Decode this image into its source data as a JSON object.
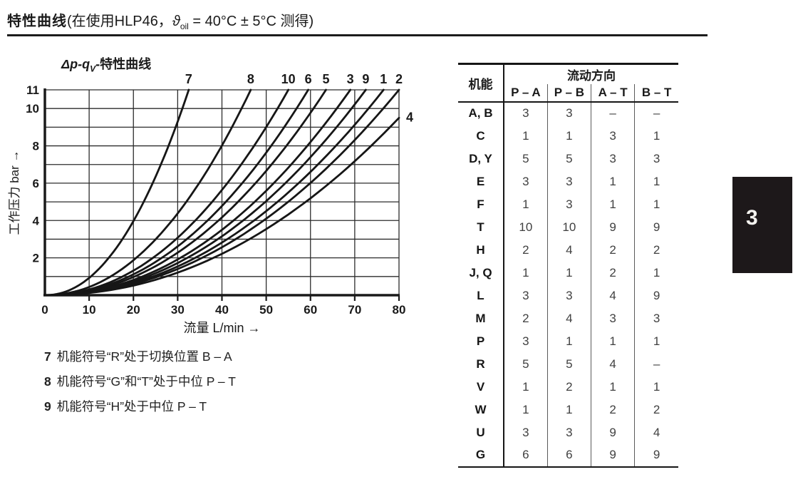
{
  "header": {
    "title_bold": "特性曲线",
    "title_pre": "(在使用HLP46，",
    "theta": "ϑ",
    "theta_sub": "oil",
    "title_post": " = 40°C ± 5°C 测得)"
  },
  "chapter_tab": {
    "number": "3"
  },
  "chart": {
    "title_italic": "Δp-q",
    "title_sub": "V",
    "title_rest": "-特性曲线",
    "x_label": "流量 L/min →",
    "y_label": "工作压力 bar →",
    "x_ticks": [
      0,
      10,
      20,
      30,
      40,
      50,
      60,
      70,
      80
    ],
    "y_tick_labels": [
      2,
      4,
      6,
      8,
      10,
      11
    ],
    "x_min": 0,
    "x_max": 80,
    "y_min": 0,
    "y_max": 11
  },
  "chart_data": {
    "type": "line",
    "title": "Δp-qV-特性曲线",
    "xlabel": "流量 L/min",
    "ylabel": "工作压力 bar",
    "xlim": [
      0,
      80
    ],
    "ylim": [
      0,
      11
    ],
    "grid": true,
    "model": "dp = dp_end * (q / q_end) ^ 2.1 (pressure-drop curves rising from origin)",
    "exponent": 2.1,
    "series": [
      {
        "name": "7",
        "q_end": 32.5,
        "dp_end": 11,
        "label_pos": "top"
      },
      {
        "name": "8",
        "q_end": 46.5,
        "dp_end": 11,
        "label_pos": "top"
      },
      {
        "name": "10",
        "q_end": 55,
        "dp_end": 11,
        "label_pos": "top"
      },
      {
        "name": "6",
        "q_end": 59.5,
        "dp_end": 11,
        "label_pos": "top"
      },
      {
        "name": "5",
        "q_end": 63.5,
        "dp_end": 11,
        "label_pos": "top"
      },
      {
        "name": "3",
        "q_end": 69,
        "dp_end": 11,
        "label_pos": "top"
      },
      {
        "name": "9",
        "q_end": 72.5,
        "dp_end": 11,
        "label_pos": "top"
      },
      {
        "name": "1",
        "q_end": 76.5,
        "dp_end": 11,
        "label_pos": "top"
      },
      {
        "name": "2",
        "q_end": 80,
        "dp_end": 11,
        "label_pos": "top"
      },
      {
        "name": "4",
        "q_end": 80,
        "dp_end": 9.5,
        "label_pos": "right"
      }
    ]
  },
  "notes": [
    {
      "num": "7",
      "text": "机能符号“R”处于切换位置 B – A"
    },
    {
      "num": "8",
      "text": "机能符号“G”和“T”处于中位 P – T"
    },
    {
      "num": "9",
      "text": "机能符号“H”处于中位 P – T"
    }
  ],
  "table": {
    "col1_header": "机能",
    "group_header": "流动方向",
    "sub_headers": [
      "P – A",
      "P – B",
      "A – T",
      "B – T"
    ],
    "rows": [
      {
        "fn": "A, B",
        "values": [
          "3",
          "3",
          "–",
          "–"
        ]
      },
      {
        "fn": "C",
        "values": [
          "1",
          "1",
          "3",
          "1"
        ]
      },
      {
        "fn": "D, Y",
        "values": [
          "5",
          "5",
          "3",
          "3"
        ]
      },
      {
        "fn": "E",
        "values": [
          "3",
          "3",
          "1",
          "1"
        ]
      },
      {
        "fn": "F",
        "values": [
          "1",
          "3",
          "1",
          "1"
        ]
      },
      {
        "fn": "T",
        "values": [
          "10",
          "10",
          "9",
          "9"
        ]
      },
      {
        "fn": "H",
        "values": [
          "2",
          "4",
          "2",
          "2"
        ]
      },
      {
        "fn": "J, Q",
        "values": [
          "1",
          "1",
          "2",
          "1"
        ]
      },
      {
        "fn": "L",
        "values": [
          "3",
          "3",
          "4",
          "9"
        ]
      },
      {
        "fn": "M",
        "values": [
          "2",
          "4",
          "3",
          "3"
        ]
      },
      {
        "fn": "P",
        "values": [
          "3",
          "1",
          "1",
          "1"
        ]
      },
      {
        "fn": "R",
        "values": [
          "5",
          "5",
          "4",
          "–"
        ]
      },
      {
        "fn": "V",
        "values": [
          "1",
          "2",
          "1",
          "1"
        ]
      },
      {
        "fn": "W",
        "values": [
          "1",
          "1",
          "2",
          "2"
        ]
      },
      {
        "fn": "U",
        "values": [
          "3",
          "3",
          "9",
          "4"
        ]
      },
      {
        "fn": "G",
        "values": [
          "6",
          "6",
          "9",
          "9"
        ]
      }
    ]
  },
  "colors": {
    "ink": "#1a1a1a",
    "grid": "#2c2c2c",
    "curve": "#161616",
    "value_text": "#414141",
    "tab_bg": "#1d181a",
    "tab_text": "#f4f2ef"
  }
}
